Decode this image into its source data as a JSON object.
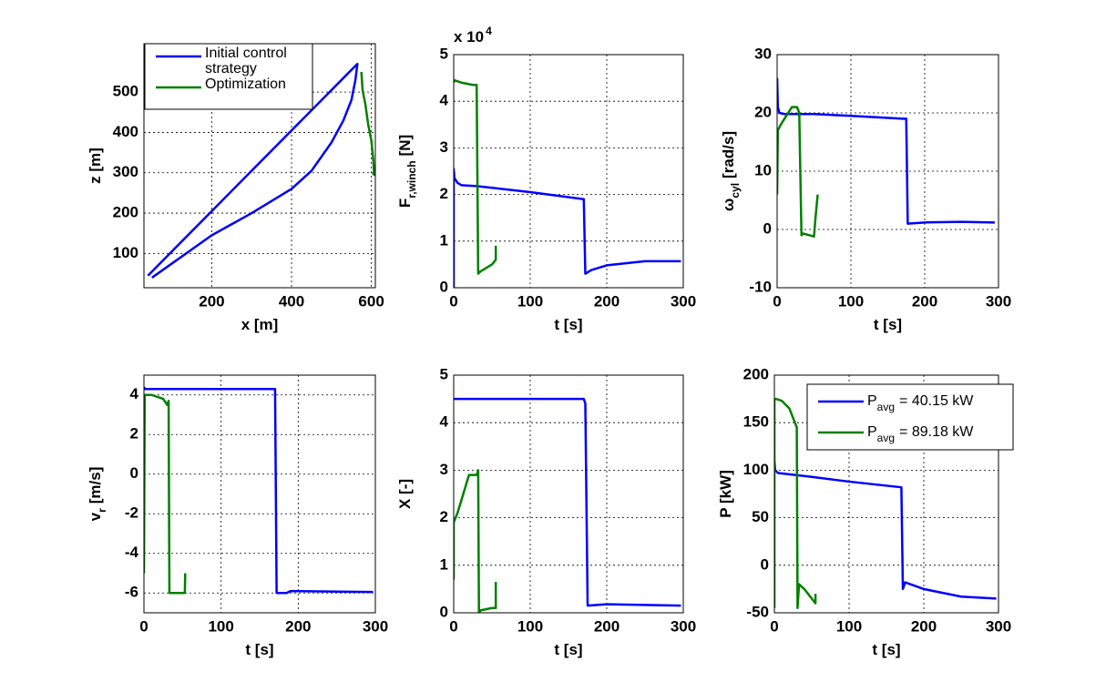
{
  "chart_data": [
    {
      "type": "line",
      "xlabel": {
        "text": "x [m]"
      },
      "ylabel": {
        "text": "z [m]"
      },
      "xlim": [
        30,
        610
      ],
      "xticks": [
        200,
        400,
        600
      ],
      "ylim": [
        15,
        620
      ],
      "yticks": [
        100,
        200,
        300,
        400,
        500
      ],
      "grid": true,
      "legend": "upper left",
      "series": [
        {
          "name": "Initial control strategy",
          "color": "#0000ff",
          "x": [
            50,
            100,
            200,
            300,
            400,
            450,
            500,
            530,
            550,
            560,
            565,
            560,
            450,
            300,
            200,
            120,
            40
          ],
          "values": [
            40,
            75,
            145,
            200,
            260,
            305,
            375,
            430,
            480,
            530,
            570,
            565,
            455,
            305,
            205,
            125,
            45
          ]
        },
        {
          "name": "Optimization",
          "color": "#008000",
          "x": [
            575,
            578,
            585,
            592,
            600,
            605,
            607,
            603
          ],
          "values": [
            550,
            505,
            470,
            420,
            380,
            330,
            295,
            300
          ]
        }
      ]
    },
    {
      "type": "line",
      "xlabel": {
        "text": "t [s]"
      },
      "ylabel": {
        "text": "F",
        "sub": "r,winch",
        "suffix": "[N]"
      },
      "y_multiplier": {
        "text": "x 10",
        "exponent": "4"
      },
      "xlim": [
        0,
        300
      ],
      "xticks": [
        0,
        100,
        200,
        300
      ],
      "ylim": [
        0,
        50000
      ],
      "yticks": [
        {
          "value": 0,
          "label": "0"
        },
        {
          "value": 10000,
          "label": "1"
        },
        {
          "value": 20000,
          "label": "2"
        },
        {
          "value": 30000,
          "label": "3"
        },
        {
          "value": 40000,
          "label": "4"
        },
        {
          "value": 50000,
          "label": "5"
        }
      ],
      "grid": true,
      "series": [
        {
          "color": "#0000ff",
          "x": [
            0,
            0,
            1,
            5,
            10,
            30,
            100,
            170,
            172,
            175,
            180,
            200,
            250,
            297
          ],
          "values": [
            0,
            25500,
            23500,
            22500,
            22000,
            21800,
            20500,
            19000,
            3000,
            3300,
            3800,
            4800,
            5700,
            5700
          ]
        },
        {
          "color": "#008000",
          "x": [
            0,
            1,
            10,
            25,
            30,
            32,
            35,
            40,
            50,
            55,
            55
          ],
          "values": [
            44000,
            44500,
            44000,
            43500,
            43500,
            3000,
            3500,
            4000,
            5000,
            6000,
            9000
          ]
        }
      ]
    },
    {
      "type": "line",
      "xlabel": {
        "text": "t [s]"
      },
      "ylabel": {
        "text": "ω",
        "sub": "cyl",
        "suffix": "[rad/s]"
      },
      "xlim": [
        0,
        300
      ],
      "xticks": [
        0,
        100,
        200,
        300
      ],
      "ylim": [
        -10,
        30
      ],
      "yticks": [
        -10,
        0,
        10,
        20,
        30
      ],
      "grid": true,
      "series": [
        {
          "color": "#0000ff",
          "x": [
            0,
            1,
            3,
            10,
            50,
            100,
            170,
            175,
            177,
            200,
            250,
            295
          ],
          "values": [
            26,
            21,
            20,
            19.8,
            19.8,
            19.5,
            19,
            19,
            1,
            1.2,
            1.3,
            1.2
          ]
        },
        {
          "color": "#008000",
          "x": [
            0,
            1,
            5,
            15,
            20,
            27,
            30,
            33,
            35,
            50,
            52,
            55
          ],
          "values": [
            6,
            17,
            18,
            20,
            21,
            21,
            20,
            -1,
            -0.7,
            -1.2,
            2,
            6
          ]
        }
      ]
    },
    {
      "type": "line",
      "xlabel": {
        "text": "t [s]"
      },
      "ylabel": {
        "text": "v",
        "sub": "r",
        "suffix": "[m/s]"
      },
      "xlim": [
        0,
        300
      ],
      "xticks": [
        0,
        100,
        200,
        300
      ],
      "ylim": [
        -7,
        5
      ],
      "yticks": [
        -6,
        -4,
        -2,
        0,
        2,
        4
      ],
      "grid": true,
      "series": [
        {
          "color": "#0000ff",
          "x": [
            0,
            1,
            10,
            170,
            172,
            175,
            185,
            190,
            297
          ],
          "values": [
            4.4,
            4.3,
            4.3,
            4.3,
            -6,
            -6,
            -6,
            -5.9,
            -5.95
          ]
        },
        {
          "color": "#008000",
          "x": [
            0,
            1,
            10,
            25,
            30,
            32,
            33,
            52,
            53,
            53.5
          ],
          "values": [
            -5,
            4,
            4,
            3.8,
            3.5,
            3.7,
            -6,
            -6,
            -6,
            -5
          ]
        }
      ]
    },
    {
      "type": "line",
      "xlabel": {
        "text": "t [s]"
      },
      "ylabel": {
        "text": "X [-]"
      },
      "xlim": [
        0,
        300
      ],
      "xticks": [
        0,
        100,
        200,
        300
      ],
      "ylim": [
        0,
        5
      ],
      "yticks": [
        0,
        1,
        2,
        3,
        4,
        5
      ],
      "grid": true,
      "series": [
        {
          "color": "#0000ff",
          "x": [
            0,
            1,
            170,
            172,
            175,
            200,
            297
          ],
          "values": [
            4.5,
            4.5,
            4.5,
            4.4,
            0.15,
            0.18,
            0.15
          ]
        },
        {
          "color": "#008000",
          "x": [
            0,
            0,
            5,
            20,
            30,
            32,
            33,
            35,
            50,
            55,
            55
          ],
          "values": [
            0.7,
            1.9,
            2.1,
            2.9,
            2.9,
            3,
            0,
            0.05,
            0.1,
            0.1,
            0.65
          ]
        }
      ]
    },
    {
      "type": "line",
      "xlabel": {
        "text": "t [s]"
      },
      "ylabel": {
        "text": "P [kW]"
      },
      "xlim": [
        0,
        300
      ],
      "xticks": [
        0,
        100,
        200,
        300
      ],
      "ylim": [
        -50,
        200
      ],
      "yticks": [
        -50,
        0,
        50,
        100,
        150,
        200
      ],
      "grid": true,
      "legend": "upper right",
      "series": [
        {
          "name": "P",
          "name_sub": "avg",
          "name_suffix": "= 40.15 kW",
          "color": "#0000ff",
          "x": [
            0,
            1,
            5,
            50,
            100,
            170,
            172,
            175,
            200,
            250,
            297
          ],
          "values": [
            110,
            100,
            97,
            93,
            88,
            82,
            -25,
            -18,
            -25,
            -33,
            -35
          ]
        },
        {
          "name": "P",
          "name_sub": "avg",
          "name_suffix": "= 89.18 kW",
          "color": "#008000",
          "x": [
            0,
            0,
            2,
            10,
            20,
            25,
            30,
            31,
            33,
            40,
            50,
            55,
            55
          ],
          "values": [
            -45,
            175,
            175,
            173,
            165,
            155,
            145,
            -45,
            -20,
            -25,
            -35,
            -40,
            -30
          ]
        }
      ]
    }
  ]
}
